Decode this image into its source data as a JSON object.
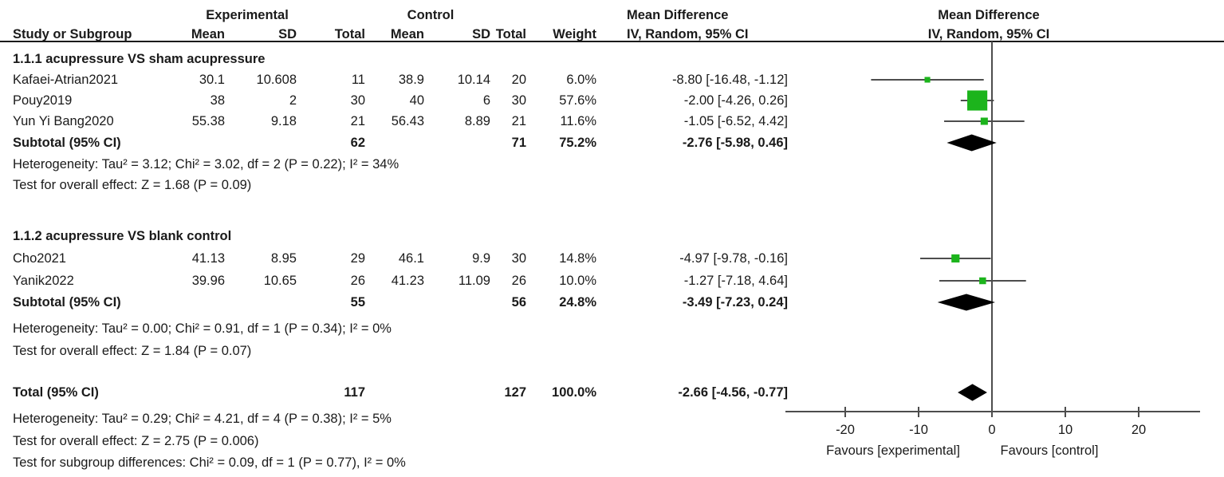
{
  "header": {
    "group_experimental": "Experimental",
    "group_control": "Control",
    "effect_title": "Mean Difference",
    "effect_subtitle": "IV, Random, 95% CI",
    "plot_title": "Mean Difference",
    "plot_subtitle": "IV, Random, 95% CI",
    "col_study": "Study or Subgroup",
    "col_mean": "Mean",
    "col_sd": "SD",
    "col_total": "Total",
    "col_weight": "Weight"
  },
  "chart_data": {
    "type": "forest",
    "effect_measure": "Mean Difference",
    "method": "IV, Random, 95% CI",
    "xlim": [
      -28,
      28
    ],
    "ticks": [
      -20,
      -10,
      0,
      10,
      20
    ],
    "favours_left": "Favours [experimental]",
    "favours_right": "Favours [control]",
    "marker_color": "#1cb41c",
    "line_color": "#4d4d4d",
    "diamond_color": "#000000",
    "subgroups": [
      {
        "label": "1.1.1 acupressure VS sham acupressure",
        "studies": [
          {
            "name": "Kafaei-Atrian2021",
            "mean_e": "30.1",
            "sd_e": "10.608",
            "total_e": "11",
            "mean_c": "38.9",
            "sd_c": "10.14",
            "total_c": "20",
            "weight": "6.0%",
            "md": -8.8,
            "ci_lo": -16.48,
            "ci_hi": -1.12,
            "md_text": "-8.80 [-16.48, -1.12]"
          },
          {
            "name": "Pouy2019",
            "mean_e": "38",
            "sd_e": "2",
            "total_e": "30",
            "mean_c": "40",
            "sd_c": "6",
            "total_c": "30",
            "weight": "57.6%",
            "md": -2.0,
            "ci_lo": -4.26,
            "ci_hi": 0.26,
            "md_text": "-2.00 [-4.26, 0.26]"
          },
          {
            "name": "Yun Yi Bang2020",
            "mean_e": "55.38",
            "sd_e": "9.18",
            "total_e": "21",
            "mean_c": "56.43",
            "sd_c": "8.89",
            "total_c": "21",
            "weight": "11.6%",
            "md": -1.05,
            "ci_lo": -6.52,
            "ci_hi": 4.42,
            "md_text": "-1.05 [-6.52, 4.42]"
          }
        ],
        "subtotal": {
          "label": "Subtotal (95% CI)",
          "total_e": "62",
          "total_c": "71",
          "weight": "75.2%",
          "md": -2.76,
          "ci_lo": -5.98,
          "ci_hi": 0.46,
          "md_text": "-2.76 [-5.98, 0.46]"
        },
        "heterogeneity": "Heterogeneity: Tau² = 3.12; Chi² = 3.02, df = 2 (P = 0.22); I² = 34%",
        "overall_effect": "Test for overall effect: Z = 1.68 (P = 0.09)"
      },
      {
        "label": "1.1.2 acupressure VS blank control",
        "studies": [
          {
            "name": "Cho2021",
            "mean_e": "41.13",
            "sd_e": "8.95",
            "total_e": "29",
            "mean_c": "46.1",
            "sd_c": "9.9",
            "total_c": "30",
            "weight": "14.8%",
            "md": -4.97,
            "ci_lo": -9.78,
            "ci_hi": -0.16,
            "md_text": "-4.97 [-9.78, -0.16]"
          },
          {
            "name": "Yanik2022",
            "mean_e": "39.96",
            "sd_e": "10.65",
            "total_e": "26",
            "mean_c": "41.23",
            "sd_c": "11.09",
            "total_c": "26",
            "weight": "10.0%",
            "md": -1.27,
            "ci_lo": -7.18,
            "ci_hi": 4.64,
            "md_text": "-1.27 [-7.18, 4.64]"
          }
        ],
        "subtotal": {
          "label": "Subtotal (95% CI)",
          "total_e": "55",
          "total_c": "56",
          "weight": "24.8%",
          "md": -3.49,
          "ci_lo": -7.23,
          "ci_hi": 0.24,
          "md_text": "-3.49 [-7.23, 0.24]"
        },
        "heterogeneity": "Heterogeneity: Tau² = 0.00; Chi² = 0.91, df = 1 (P = 0.34); I² = 0%",
        "overall_effect": "Test for overall effect: Z = 1.84 (P = 0.07)"
      }
    ],
    "total": {
      "label": "Total (95% CI)",
      "total_e": "117",
      "total_c": "127",
      "weight": "100.0%",
      "md": -2.66,
      "ci_lo": -4.56,
      "ci_hi": -0.77,
      "md_text": "-2.66 [-4.56, -0.77]"
    },
    "total_heterogeneity": "Heterogeneity: Tau² = 0.29; Chi² = 4.21, df = 4 (P = 0.38); I² = 5%",
    "total_overall_effect": "Test for overall effect: Z = 2.75 (P = 0.006)",
    "subgroup_differences": "Test for subgroup differences: Chi² = 0.09, df = 1 (P = 0.77), I² = 0%"
  }
}
